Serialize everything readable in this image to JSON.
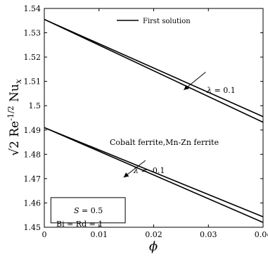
{
  "chart_data": {
    "type": "line",
    "title": "",
    "xlabel": "ϕ",
    "ylabel": "√2 Re^-1/2 Nu_x",
    "xlim": [
      0,
      0.04
    ],
    "ylim": [
      1.45,
      1.54
    ],
    "xticks": [
      0,
      0.01,
      0.02,
      0.03,
      0.04
    ],
    "xtick_labels": [
      "0",
      "0.01",
      "0.02",
      "0.03",
      "0.04"
    ],
    "yticks": [
      1.45,
      1.46,
      1.47,
      1.48,
      1.49,
      1.5,
      1.51,
      1.52,
      1.53,
      1.54
    ],
    "ytick_labels": [
      "1.45",
      "1.46",
      "1.47",
      "1.48",
      "1.49",
      "1.5",
      "1.51",
      "1.52",
      "1.53",
      "1.54"
    ],
    "grid": false,
    "legend": {
      "position": "top-center",
      "entries": [
        "First solution"
      ]
    },
    "series": [
      {
        "x": [
          0,
          0.04
        ],
        "y": [
          1.5355,
          1.4955
        ],
        "color": "#000000"
      },
      {
        "x": [
          0,
          0.04
        ],
        "y": [
          1.5355,
          1.4932
        ],
        "color": "#000000"
      },
      {
        "x": [
          0,
          0.04
        ],
        "y": [
          1.491,
          1.4543
        ],
        "color": "#000000"
      },
      {
        "x": [
          0,
          0.04
        ],
        "y": [
          1.491,
          1.452
        ],
        "color": "#000000"
      }
    ],
    "annotations": {
      "lambda_top": "λ = 0.1",
      "lambda_bottom": "λ = -0.1",
      "fluids": "Cobalt ferrite,Mn-Zn ferrite",
      "box_line1": "S = 0.5",
      "box_line2": "Bi = Rd = 1"
    },
    "arrows": [
      {
        "from": [
          0.0295,
          1.5138
        ],
        "to": [
          0.0255,
          1.5065
        ]
      },
      {
        "from": [
          0.0185,
          1.4775
        ],
        "to": [
          0.0145,
          1.4705
        ]
      }
    ],
    "note_box": {
      "x": [
        0.0012,
        0.0148
      ],
      "y": [
        1.4518,
        1.4622
      ]
    }
  }
}
